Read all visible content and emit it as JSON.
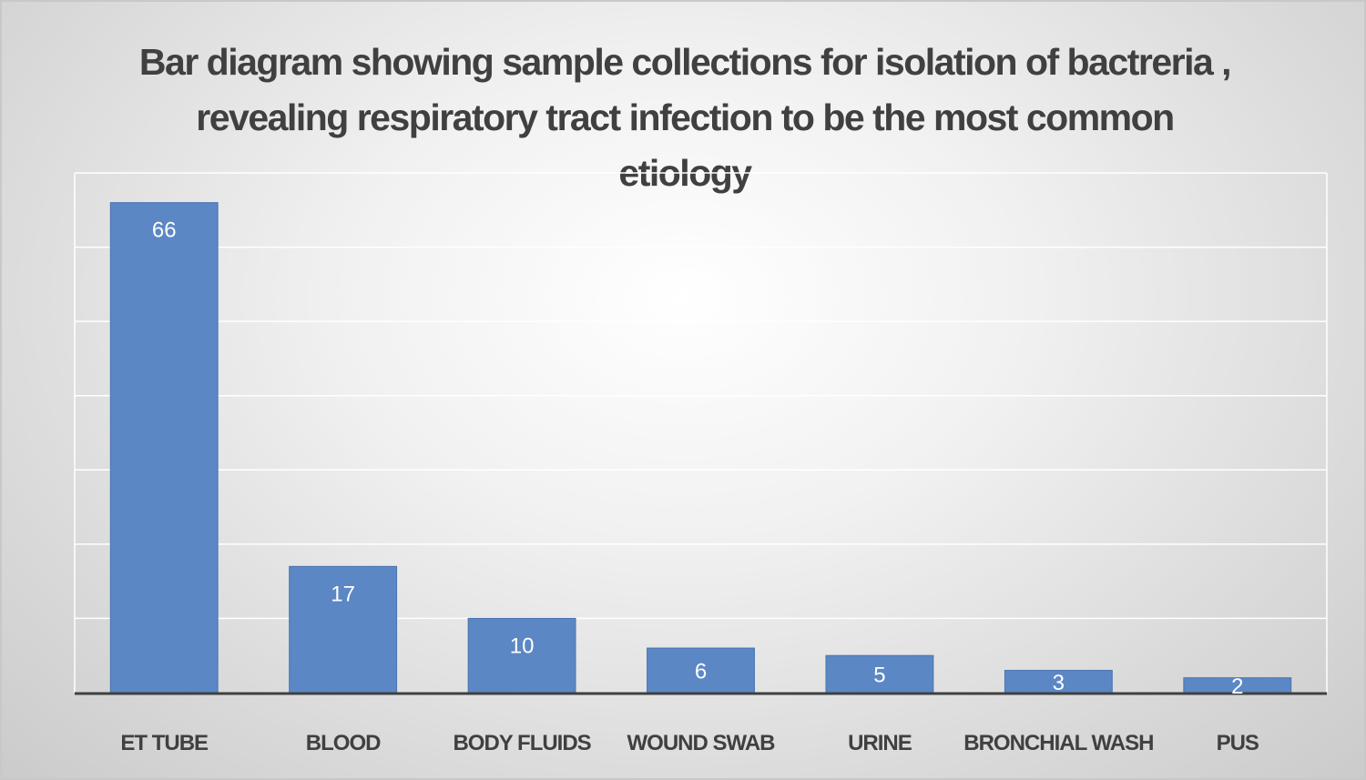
{
  "chart_data": {
    "type": "bar",
    "title": "Bar diagram showing sample collections for  isolation of bactreria , revealing respiratory tract infection to be the most common etiology",
    "categories": [
      "ET TUBE",
      "BLOOD",
      "BODY FLUIDS",
      "WOUND SWAB",
      "URINE",
      "BRONCHIAL WASH",
      "PUS"
    ],
    "values": [
      66,
      17,
      10,
      6,
      5,
      3,
      2
    ],
    "data_labels": [
      "66",
      "17",
      "10",
      "6",
      "5",
      "3",
      "2"
    ],
    "xlabel": "",
    "ylabel": "",
    "ylim": [
      0,
      70
    ],
    "grid": true,
    "gridline_step": 10,
    "legend": "none",
    "colors": {
      "bar": "#5b87c5",
      "bar_edge": "#4a74b0",
      "gridline": "#ffffff",
      "axis": "#404040",
      "title": "#404040"
    }
  }
}
